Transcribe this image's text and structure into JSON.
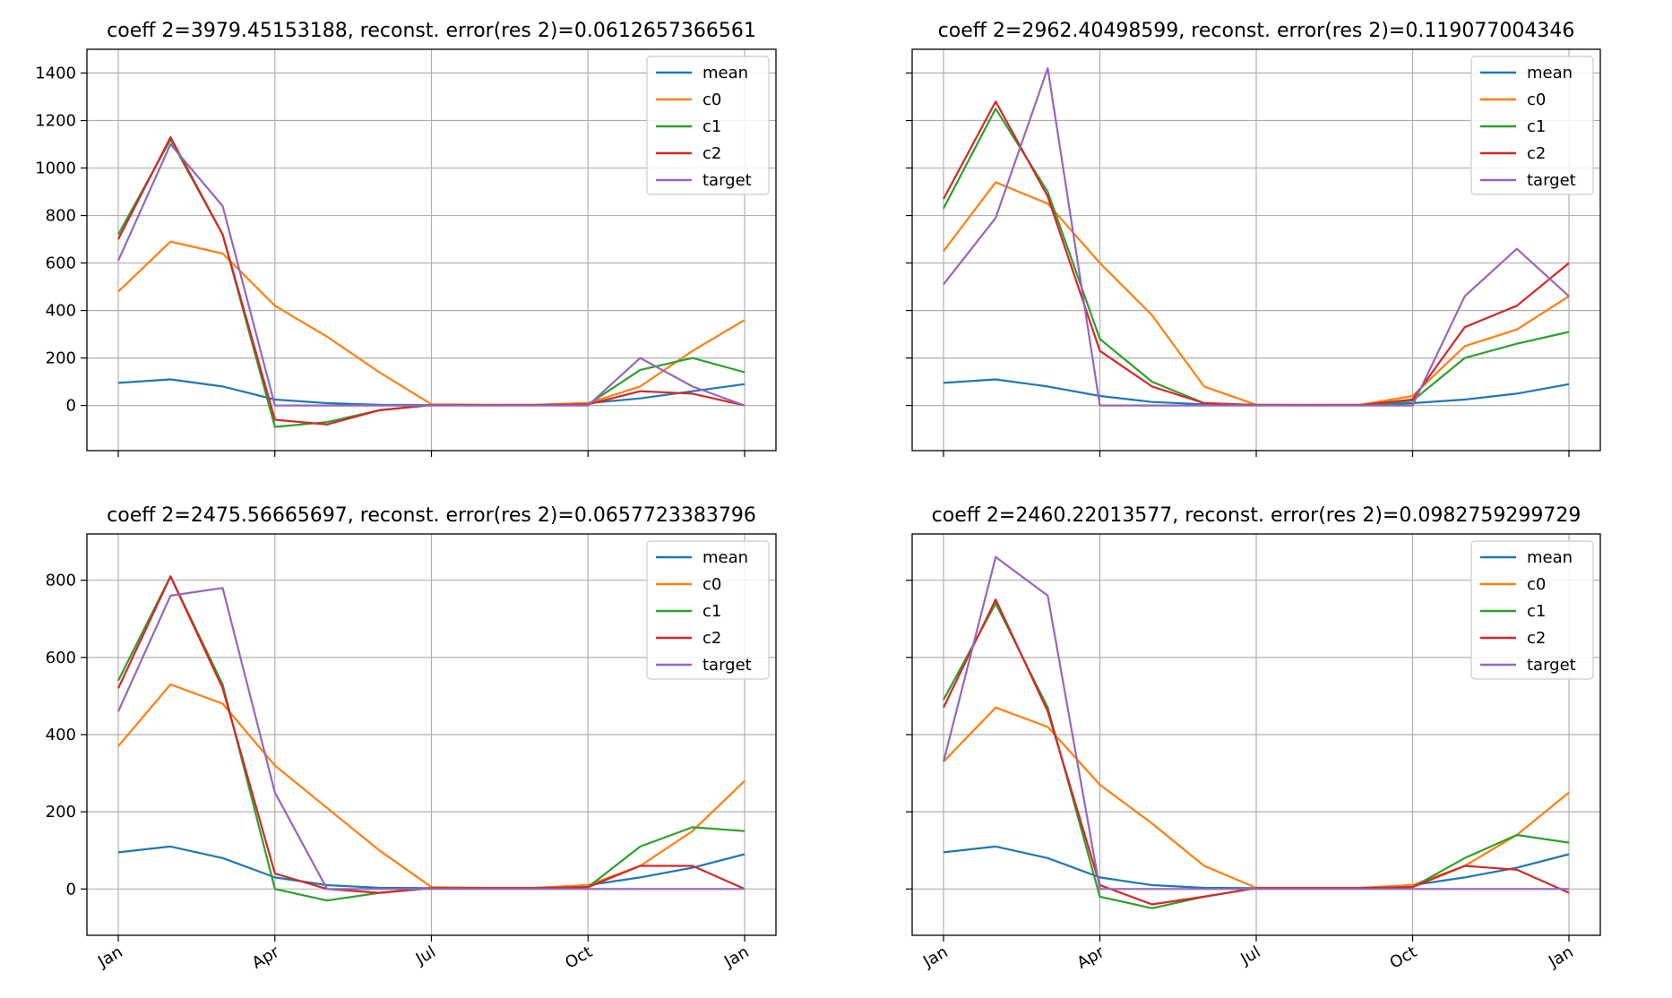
{
  "colors": {
    "mean": "#1f77b4",
    "c0": "#ff7f0e",
    "c1": "#2ca02c",
    "c2": "#d62728",
    "target": "#9467bd"
  },
  "legend_entries": [
    "mean",
    "c0",
    "c1",
    "c2",
    "target"
  ],
  "chart_data": [
    {
      "type": "line",
      "title": "coeff 2=3979.45153188, reconst. error(res 2)=0.0612657366561",
      "x": [
        "Jan",
        "Feb",
        "Mar",
        "Apr",
        "May",
        "Jun",
        "Jul",
        "Aug",
        "Sep",
        "Oct",
        "Nov",
        "Dec",
        "Jan"
      ],
      "xticks": [
        "Jan",
        "Apr",
        "Jul",
        "Oct",
        "Jan"
      ],
      "yticks": [
        0,
        200,
        400,
        600,
        800,
        1000,
        1200,
        1400
      ],
      "ylim": [
        -190,
        1500
      ],
      "grid": true,
      "legend_position": "top-right",
      "series": [
        {
          "name": "mean",
          "values": [
            95,
            110,
            80,
            25,
            10,
            3,
            2,
            2,
            3,
            10,
            30,
            60,
            90
          ]
        },
        {
          "name": "c0",
          "values": [
            480,
            690,
            640,
            420,
            290,
            140,
            5,
            3,
            3,
            10,
            80,
            230,
            360
          ]
        },
        {
          "name": "c1",
          "values": [
            720,
            1120,
            720,
            -90,
            -70,
            -20,
            2,
            2,
            2,
            5,
            150,
            200,
            140
          ]
        },
        {
          "name": "c2",
          "values": [
            700,
            1130,
            720,
            -60,
            -80,
            -20,
            2,
            2,
            2,
            5,
            60,
            50,
            0
          ]
        },
        {
          "name": "target",
          "values": [
            610,
            1100,
            840,
            0,
            0,
            0,
            0,
            0,
            0,
            0,
            200,
            80,
            0
          ]
        }
      ]
    },
    {
      "type": "line",
      "title": "coeff 2=2962.40498599, reconst. error(res 2)=0.119077004346",
      "x": [
        "Jan",
        "Feb",
        "Mar",
        "Apr",
        "May",
        "Jun",
        "Jul",
        "Aug",
        "Sep",
        "Oct",
        "Nov",
        "Dec",
        "Jan"
      ],
      "xticks": [
        "Jan",
        "Apr",
        "Jul",
        "Oct",
        "Jan"
      ],
      "yticks": [
        0,
        200,
        400,
        600,
        800,
        1000,
        1200,
        1400
      ],
      "ylim": [
        -190,
        1500
      ],
      "grid": true,
      "legend_position": "top-right",
      "series": [
        {
          "name": "mean",
          "values": [
            95,
            110,
            80,
            40,
            15,
            5,
            3,
            2,
            3,
            10,
            25,
            50,
            90
          ]
        },
        {
          "name": "c0",
          "values": [
            650,
            940,
            850,
            600,
            380,
            80,
            3,
            3,
            3,
            40,
            250,
            320,
            460
          ]
        },
        {
          "name": "c1",
          "values": [
            830,
            1250,
            900,
            280,
            100,
            10,
            2,
            2,
            2,
            20,
            200,
            260,
            310
          ]
        },
        {
          "name": "c2",
          "values": [
            870,
            1280,
            880,
            230,
            80,
            10,
            2,
            2,
            2,
            25,
            330,
            420,
            600
          ]
        },
        {
          "name": "target",
          "values": [
            510,
            790,
            1420,
            0,
            0,
            0,
            0,
            0,
            0,
            0,
            460,
            660,
            460
          ]
        }
      ]
    },
    {
      "type": "line",
      "title": "coeff 2=2475.56665697, reconst. error(res 2)=0.0657723383796",
      "x": [
        "Jan",
        "Feb",
        "Mar",
        "Apr",
        "May",
        "Jun",
        "Jul",
        "Aug",
        "Sep",
        "Oct",
        "Nov",
        "Dec",
        "Jan"
      ],
      "xticks": [
        "Jan",
        "Apr",
        "Jul",
        "Oct",
        "Jan"
      ],
      "yticks": [
        0,
        200,
        400,
        600,
        800
      ],
      "ylim": [
        -120,
        920
      ],
      "grid": true,
      "legend_position": "top-right",
      "series": [
        {
          "name": "mean",
          "values": [
            95,
            110,
            80,
            30,
            10,
            3,
            2,
            2,
            3,
            10,
            30,
            55,
            90
          ]
        },
        {
          "name": "c0",
          "values": [
            370,
            530,
            480,
            320,
            210,
            100,
            5,
            3,
            3,
            10,
            60,
            150,
            280
          ]
        },
        {
          "name": "c1",
          "values": [
            540,
            810,
            530,
            0,
            -30,
            -10,
            2,
            2,
            2,
            5,
            110,
            160,
            150
          ]
        },
        {
          "name": "c2",
          "values": [
            520,
            810,
            520,
            40,
            0,
            -10,
            2,
            2,
            2,
            5,
            60,
            60,
            0
          ]
        },
        {
          "name": "target",
          "values": [
            460,
            760,
            780,
            250,
            0,
            0,
            0,
            0,
            0,
            0,
            0,
            0,
            0
          ]
        }
      ]
    },
    {
      "type": "line",
      "title": "coeff 2=2460.22013577, reconst. error(res 2)=0.0982759299729",
      "x": [
        "Jan",
        "Feb",
        "Mar",
        "Apr",
        "May",
        "Jun",
        "Jul",
        "Aug",
        "Sep",
        "Oct",
        "Nov",
        "Dec",
        "Jan"
      ],
      "xticks": [
        "Jan",
        "Apr",
        "Jul",
        "Oct",
        "Jan"
      ],
      "yticks": [
        0,
        200,
        400,
        600,
        800
      ],
      "ylim": [
        -120,
        920
      ],
      "grid": true,
      "legend_position": "top-right",
      "series": [
        {
          "name": "mean",
          "values": [
            95,
            110,
            80,
            30,
            10,
            3,
            2,
            2,
            3,
            10,
            30,
            55,
            90
          ]
        },
        {
          "name": "c0",
          "values": [
            330,
            470,
            420,
            270,
            170,
            60,
            3,
            3,
            3,
            10,
            60,
            140,
            250
          ]
        },
        {
          "name": "c1",
          "values": [
            490,
            740,
            470,
            -20,
            -50,
            -20,
            2,
            2,
            2,
            5,
            80,
            140,
            120
          ]
        },
        {
          "name": "c2",
          "values": [
            470,
            750,
            460,
            10,
            -40,
            -20,
            2,
            2,
            2,
            5,
            60,
            50,
            -10
          ]
        },
        {
          "name": "target",
          "values": [
            330,
            860,
            760,
            0,
            0,
            0,
            0,
            0,
            0,
            0,
            0,
            0,
            0
          ]
        }
      ]
    }
  ]
}
